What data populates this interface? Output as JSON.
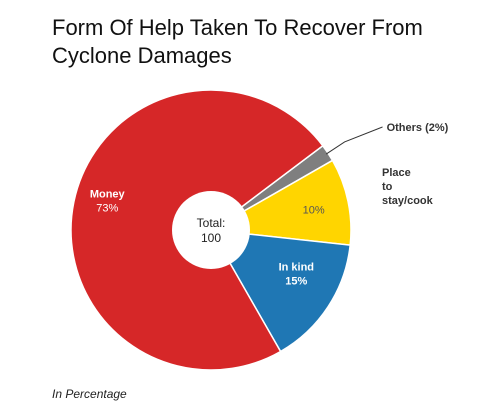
{
  "chart_data": {
    "type": "pie",
    "title": "Form Of Help Taken To Recover From Cyclone Damages",
    "center_label": "Total:",
    "center_value": "100",
    "footnote": "In Percentage",
    "slices": [
      {
        "name": "Others",
        "value": 2,
        "label": "Others (2%)",
        "color": "#7f7f7f",
        "label_color": "#333333",
        "label_weight": "bold"
      },
      {
        "name": "Place to stay/cook",
        "value": 10,
        "label": "10%",
        "label_lines": [
          "Place",
          "to",
          "stay/cook"
        ],
        "color": "#ffd500",
        "label_color": "#555555",
        "label_weight": "normal"
      },
      {
        "name": "In kind",
        "value": 15,
        "label_lines": [
          "In kind",
          "15%"
        ],
        "color": "#1f77b4",
        "label_color": "#ffffff",
        "label_weight": "bold"
      },
      {
        "name": "Money",
        "value": 73,
        "label_lines": [
          "Money",
          "73%"
        ],
        "color": "#d62728",
        "label_color": "#ffffff",
        "label_weight": "bold"
      }
    ]
  }
}
